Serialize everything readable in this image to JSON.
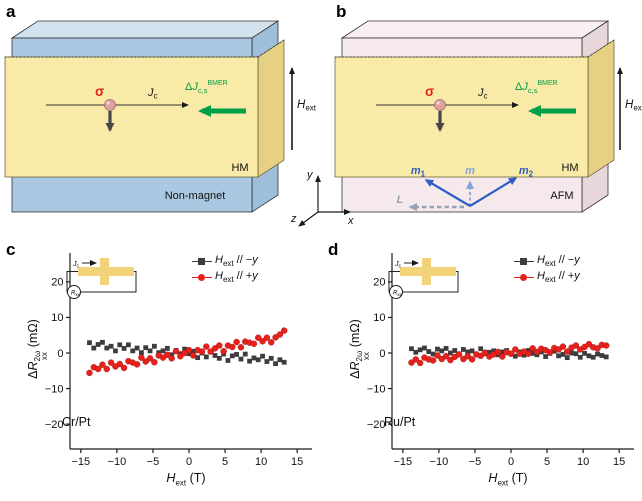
{
  "letters": {
    "a": "a",
    "b": "b",
    "c": "c",
    "d": "d"
  },
  "colors": {
    "bmer_green": "#009f49",
    "sigma_red": "#e01f1f",
    "hm_yellow": "#f9eaa7",
    "nonmagnet_blue": "#abc8e2",
    "afm_pink": "#f6e9ec",
    "neel_blue": "#2e5ec6",
    "square_series": "#3d3d3f",
    "circle_series": "#e8211d"
  },
  "panel_a": {
    "hm": "HM",
    "substrate": "Non-magnet",
    "sigma": "σ",
    "jc": {
      "main": "J",
      "sub": "c"
    },
    "bmer": {
      "delta": "Δ",
      "j": "J",
      "sub": "c,s",
      "sup": "BMER"
    },
    "hext": {
      "main": "H",
      "sub": "ext"
    }
  },
  "panel_b": {
    "hm": "HM",
    "substrate": "AFM",
    "sigma": "σ",
    "jc": {
      "main": "J",
      "sub": "c"
    },
    "bmer": {
      "delta": "Δ",
      "j": "J",
      "sub": "c,s",
      "sup": "BMER"
    },
    "hext": {
      "main": "H",
      "sub": "ext"
    },
    "m1": {
      "main": "m",
      "sub": "1"
    },
    "m": "m",
    "m2": {
      "main": "m",
      "sub": "2"
    },
    "L": "L"
  },
  "axes_widget": {
    "x": "x",
    "y": "y",
    "z": "z"
  },
  "chart_data": [
    {
      "id": "c",
      "type": "scatter",
      "sample": "Cr/Pt",
      "xlabel": {
        "main": "H",
        "sub": "ext",
        "unit": " (T)"
      },
      "ylabel": {
        "delta": "Δ",
        "r": "R",
        "sup": "2ω",
        "sub": "xx",
        "unit": " (mΩ)"
      },
      "xlim": [
        -16.5,
        16.5
      ],
      "ylim": [
        -27,
        27
      ],
      "xticks": [
        -15,
        -10,
        -5,
        0,
        5,
        10,
        15
      ],
      "yticks": [
        -20,
        -10,
        0,
        10,
        20
      ],
      "legend": [
        {
          "marker": "square",
          "color": "#3d3d3f",
          "main": "H",
          "sub": "ext",
          "rest": " // −",
          "axis": "y"
        },
        {
          "marker": "circle",
          "color": "#e8211d",
          "main": "H",
          "sub": "ext",
          "rest": " // +",
          "axis": "y"
        }
      ],
      "inset": {
        "jc_main": "J",
        "jc_sub": "c",
        "r_main": "R",
        "r_sub": "xx"
      },
      "series": [
        {
          "name": "Hext // -y",
          "marker": "square",
          "color": "#3d3d3f",
          "points": [
            [
              -13.8,
              2.9
            ],
            [
              -13.2,
              1.4
            ],
            [
              -12.6,
              2.4
            ],
            [
              -12.0,
              3.0
            ],
            [
              -11.4,
              1.4
            ],
            [
              -10.8,
              1.9
            ],
            [
              -10.2,
              0.6
            ],
            [
              -9.6,
              2.3
            ],
            [
              -9.0,
              1.3
            ],
            [
              -8.4,
              2.3
            ],
            [
              -7.8,
              0.6
            ],
            [
              -7.2,
              1.4
            ],
            [
              -6.6,
              0.1
            ],
            [
              -6.0,
              1.5
            ],
            [
              -5.4,
              0.6
            ],
            [
              -4.8,
              1.9
            ],
            [
              -4.2,
              0.1
            ],
            [
              -3.6,
              0.6
            ],
            [
              -3.0,
              1.3
            ],
            [
              -2.4,
              -0.5
            ],
            [
              -1.8,
              0.7
            ],
            [
              -1.2,
              -0.2
            ],
            [
              -0.6,
              1.1
            ],
            [
              0.0,
              -0.2
            ],
            [
              0.6,
              0.5
            ],
            [
              1.2,
              -1.3
            ],
            [
              1.8,
              0.0
            ],
            [
              2.4,
              -1.1
            ],
            [
              3.0,
              0.4
            ],
            [
              3.6,
              -0.7
            ],
            [
              4.2,
              -1.5
            ],
            [
              4.8,
              -0.3
            ],
            [
              5.4,
              -2.1
            ],
            [
              6.0,
              -0.8
            ],
            [
              6.6,
              -0.4
            ],
            [
              7.2,
              -1.7
            ],
            [
              7.8,
              -0.3
            ],
            [
              8.4,
              -2.3
            ],
            [
              9.0,
              -1.4
            ],
            [
              9.6,
              -1.9
            ],
            [
              10.2,
              -0.9
            ],
            [
              10.8,
              -2.4
            ],
            [
              11.4,
              -1.5
            ],
            [
              12.0,
              -3.0
            ],
            [
              12.6,
              -1.9
            ],
            [
              13.2,
              -2.6
            ]
          ]
        },
        {
          "name": "Hext // +y",
          "marker": "circle",
          "color": "#e8211d",
          "points": [
            [
              -13.8,
              -5.6
            ],
            [
              -13.2,
              -4.0
            ],
            [
              -12.6,
              -4.5
            ],
            [
              -12.0,
              -3.3
            ],
            [
              -11.4,
              -4.5
            ],
            [
              -10.8,
              -2.7
            ],
            [
              -10.2,
              -3.8
            ],
            [
              -9.6,
              -3.1
            ],
            [
              -9.0,
              -4.2
            ],
            [
              -8.4,
              -2.3
            ],
            [
              -7.8,
              -2.7
            ],
            [
              -7.2,
              -3.2
            ],
            [
              -6.6,
              -1.3
            ],
            [
              -6.0,
              -2.4
            ],
            [
              -5.4,
              -1.5
            ],
            [
              -4.8,
              -2.6
            ],
            [
              -4.2,
              -0.7
            ],
            [
              -3.6,
              -1.3
            ],
            [
              -3.0,
              -0.5
            ],
            [
              -2.4,
              -1.5
            ],
            [
              -1.8,
              0.5
            ],
            [
              -1.2,
              -0.9
            ],
            [
              -0.6,
              0.0
            ],
            [
              0.0,
              0.8
            ],
            [
              0.6,
              -0.7
            ],
            [
              1.2,
              0.8
            ],
            [
              1.8,
              0.4
            ],
            [
              2.4,
              1.8
            ],
            [
              3.0,
              0.4
            ],
            [
              3.6,
              1.3
            ],
            [
              4.2,
              2.1
            ],
            [
              4.8,
              0.5
            ],
            [
              5.4,
              2.1
            ],
            [
              6.0,
              1.7
            ],
            [
              6.6,
              3.1
            ],
            [
              7.2,
              1.6
            ],
            [
              7.8,
              3.2
            ],
            [
              8.4,
              2.9
            ],
            [
              9.0,
              2.6
            ],
            [
              9.6,
              4.3
            ],
            [
              10.2,
              3.3
            ],
            [
              10.8,
              4.3
            ],
            [
              11.4,
              3.0
            ],
            [
              12.0,
              4.4
            ],
            [
              12.6,
              5.2
            ],
            [
              13.2,
              6.3
            ]
          ]
        }
      ]
    },
    {
      "id": "d",
      "type": "scatter",
      "sample": "Ru/Pt",
      "xlabel": {
        "main": "H",
        "sub": "ext",
        "unit": " (T)"
      },
      "ylabel": {
        "delta": "Δ",
        "r": "R",
        "sup": "2ω",
        "sub": "xx",
        "unit": " (mΩ)"
      },
      "xlim": [
        -16.5,
        16.5
      ],
      "ylim": [
        -27,
        27
      ],
      "xticks": [
        -15,
        -10,
        -5,
        0,
        5,
        10,
        15
      ],
      "yticks": [
        -20,
        -10,
        0,
        10,
        20
      ],
      "legend": [
        {
          "marker": "square",
          "color": "#3d3d3f",
          "main": "H",
          "sub": "ext",
          "rest": " // −",
          "axis": "y"
        },
        {
          "marker": "circle",
          "color": "#e8211d",
          "main": "H",
          "sub": "ext",
          "rest": " // +",
          "axis": "y"
        }
      ],
      "inset": {
        "jc_main": "J",
        "jc_sub": "c",
        "r_main": "R",
        "r_sub": "xx"
      },
      "series": [
        {
          "name": "Hext // -y",
          "marker": "square",
          "color": "#3d3d3f",
          "points": [
            [
              -13.8,
              1.2
            ],
            [
              -13.2,
              0.2
            ],
            [
              -12.6,
              0.9
            ],
            [
              -12.0,
              1.4
            ],
            [
              -11.4,
              0.4
            ],
            [
              -10.8,
              -0.3
            ],
            [
              -10.2,
              1.1
            ],
            [
              -9.6,
              0.6
            ],
            [
              -9.0,
              1.3
            ],
            [
              -8.4,
              0.0
            ],
            [
              -7.8,
              0.7
            ],
            [
              -7.2,
              -0.3
            ],
            [
              -6.6,
              1.0
            ],
            [
              -6.0,
              0.3
            ],
            [
              -5.4,
              0.6
            ],
            [
              -4.8,
              -0.5
            ],
            [
              -4.2,
              1.2
            ],
            [
              -3.6,
              -0.2
            ],
            [
              -3.0,
              0.2
            ],
            [
              -2.4,
              0.6
            ],
            [
              -1.8,
              -0.5
            ],
            [
              -1.2,
              0.3
            ],
            [
              -0.6,
              0.7
            ],
            [
              0.0,
              -0.2
            ],
            [
              0.6,
              -0.9
            ],
            [
              1.2,
              0.3
            ],
            [
              1.8,
              -0.6
            ],
            [
              2.4,
              0.7
            ],
            [
              3.0,
              -0.1
            ],
            [
              3.6,
              -0.5
            ],
            [
              4.2,
              0.3
            ],
            [
              4.8,
              -1.0
            ],
            [
              5.4,
              -0.1
            ],
            [
              6.0,
              0.5
            ],
            [
              6.6,
              -0.8
            ],
            [
              7.2,
              -0.4
            ],
            [
              7.8,
              -1.3
            ],
            [
              8.4,
              0.0
            ],
            [
              9.0,
              -0.2
            ],
            [
              9.6,
              -1.2
            ],
            [
              10.2,
              -0.1
            ],
            [
              10.8,
              -0.8
            ],
            [
              11.4,
              -1.2
            ],
            [
              12.0,
              -0.3
            ],
            [
              12.6,
              -0.7
            ],
            [
              13.2,
              -1.1
            ]
          ]
        },
        {
          "name": "Hext // +y",
          "marker": "circle",
          "color": "#e8211d",
          "points": [
            [
              -13.8,
              -2.7
            ],
            [
              -13.2,
              -1.8
            ],
            [
              -12.6,
              -2.8
            ],
            [
              -12.0,
              -1.3
            ],
            [
              -11.4,
              -1.8
            ],
            [
              -10.8,
              -2.1
            ],
            [
              -10.2,
              -0.7
            ],
            [
              -9.6,
              -1.7
            ],
            [
              -9.0,
              -0.9
            ],
            [
              -8.4,
              -2.0
            ],
            [
              -7.8,
              -1.1
            ],
            [
              -7.2,
              -0.4
            ],
            [
              -6.6,
              -1.7
            ],
            [
              -6.0,
              -0.9
            ],
            [
              -5.4,
              -1.8
            ],
            [
              -4.8,
              -0.4
            ],
            [
              -4.2,
              -0.8
            ],
            [
              -3.6,
              0.1
            ],
            [
              -3.0,
              -1.0
            ],
            [
              -2.4,
              -0.4
            ],
            [
              -1.8,
              0.3
            ],
            [
              -1.2,
              -1.0
            ],
            [
              -0.6,
              0.2
            ],
            [
              0.0,
              -0.2
            ],
            [
              0.6,
              1.0
            ],
            [
              1.2,
              -0.2
            ],
            [
              1.8,
              0.4
            ],
            [
              2.4,
              -0.2
            ],
            [
              3.0,
              1.3
            ],
            [
              3.6,
              0.3
            ],
            [
              4.2,
              1.2
            ],
            [
              4.8,
              0.8
            ],
            [
              5.4,
              0.2
            ],
            [
              6.0,
              1.4
            ],
            [
              6.6,
              1.0
            ],
            [
              7.2,
              1.8
            ],
            [
              7.8,
              0.4
            ],
            [
              8.4,
              1.5
            ],
            [
              9.0,
              2.1
            ],
            [
              9.6,
              1.0
            ],
            [
              10.2,
              1.7
            ],
            [
              10.8,
              2.5
            ],
            [
              11.4,
              1.6
            ],
            [
              12.0,
              1.3
            ],
            [
              12.6,
              2.3
            ],
            [
              13.2,
              2.1
            ]
          ]
        }
      ]
    }
  ]
}
